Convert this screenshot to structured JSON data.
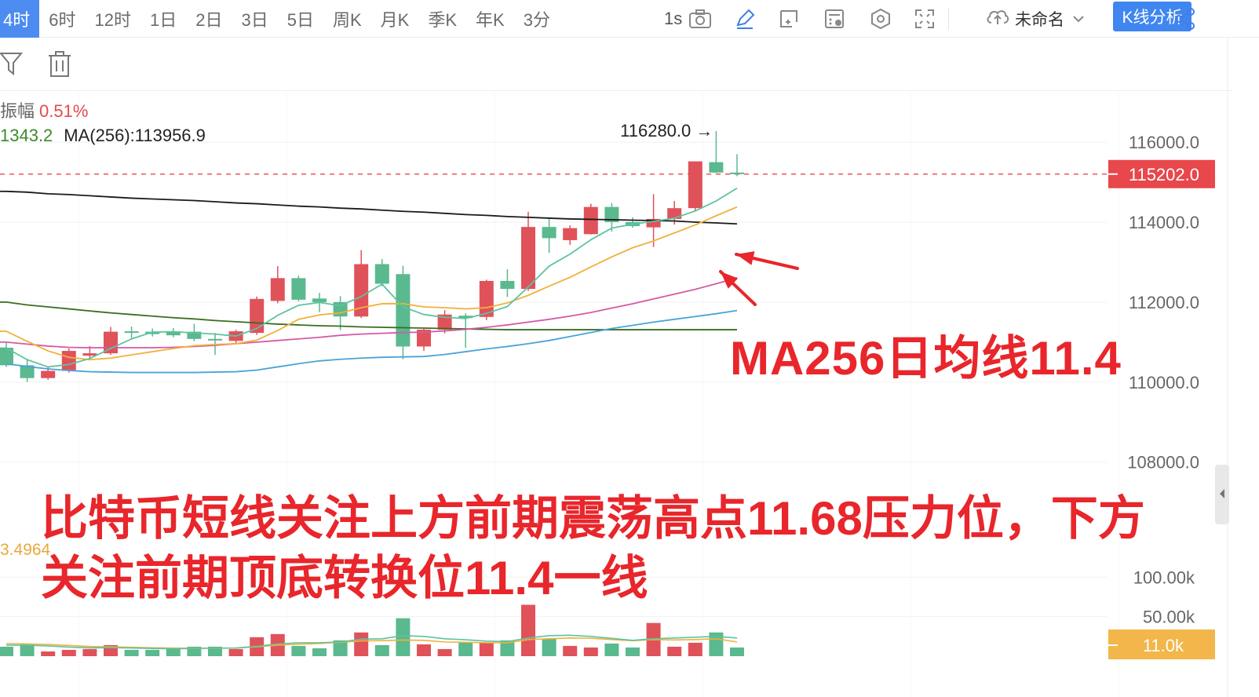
{
  "toolbar": {
    "timeframes": [
      "4时",
      "6时",
      "12时",
      "1日",
      "2日",
      "3日",
      "5日",
      "周K",
      "月K",
      "季K",
      "年K",
      "3分"
    ],
    "active_timeframe": "4时",
    "interval_label": "1s",
    "layout_name": "未命名",
    "kline_button": "K线分析",
    "icons": [
      "camera-icon",
      "pencil-icon",
      "add-frame-icon",
      "calculator-icon",
      "settings-hexagon-icon",
      "fullscreen-icon",
      "cloud-upload-icon",
      "chevron-down-icon",
      "share-icon"
    ]
  },
  "subtoolbar": {
    "icons": [
      "filter-icon",
      "trash-icon"
    ]
  },
  "legend": {
    "amplitude_label": "振幅",
    "amplitude_value": "0.51%",
    "ma_partial_value": "1343.2",
    "ma256_label": "MA(256):113956.9",
    "volume_ma_partial": "3.4964"
  },
  "colors": {
    "up": "#e0525a",
    "down": "#5ab98e",
    "ma_black": "#1a1a1a",
    "ma_teal": "#5ec3a0",
    "ma_orange": "#f0b13b",
    "ma_magenta": "#d55aa5",
    "ma_blue": "#4aa3d8",
    "ma_darkgreen": "#3a6e1f",
    "price_tag": "#e8474b",
    "volume_tag": "#f2b64a",
    "annotation": "#e8262b"
  },
  "chart_data": {
    "type": "candlestick",
    "price_axis": {
      "ticks": [
        "116000.0",
        "114000.0",
        "112000.0",
        "110000.0",
        "108000.0"
      ],
      "range": [
        106600,
        117200
      ]
    },
    "volume_axis": {
      "ticks": [
        "100.00k",
        "50.00k"
      ],
      "range": [
        0,
        135000
      ]
    },
    "current_price_label": "115202.0",
    "current_volume_label": "11.0k",
    "high_marker_label": "116280.0 →",
    "candles": [
      {
        "o": 110860,
        "h": 110980,
        "l": 110380,
        "c": 110420,
        "v": 12000
      },
      {
        "o": 110420,
        "h": 110580,
        "l": 110000,
        "c": 110100,
        "v": 15000
      },
      {
        "o": 110100,
        "h": 110380,
        "l": 110060,
        "c": 110280,
        "v": 6000
      },
      {
        "o": 110280,
        "h": 110840,
        "l": 110240,
        "c": 110780,
        "v": 8000
      },
      {
        "o": 110660,
        "h": 110900,
        "l": 110580,
        "c": 110720,
        "v": 9000
      },
      {
        "o": 110720,
        "h": 111380,
        "l": 110680,
        "c": 111260,
        "v": 14000
      },
      {
        "o": 111270,
        "h": 111390,
        "l": 111100,
        "c": 111240,
        "v": 8000
      },
      {
        "o": 111260,
        "h": 111340,
        "l": 111140,
        "c": 111200,
        "v": 8000
      },
      {
        "o": 111270,
        "h": 111350,
        "l": 111120,
        "c": 111170,
        "v": 9000
      },
      {
        "o": 111260,
        "h": 111460,
        "l": 111020,
        "c": 111080,
        "v": 12000
      },
      {
        "o": 111080,
        "h": 111230,
        "l": 110680,
        "c": 111040,
        "v": 12000
      },
      {
        "o": 111030,
        "h": 111310,
        "l": 110960,
        "c": 111270,
        "v": 9000
      },
      {
        "o": 111230,
        "h": 112140,
        "l": 111180,
        "c": 112080,
        "v": 24000
      },
      {
        "o": 112030,
        "h": 112900,
        "l": 111970,
        "c": 112600,
        "v": 28000
      },
      {
        "o": 112600,
        "h": 112660,
        "l": 112020,
        "c": 112060,
        "v": 13000
      },
      {
        "o": 112090,
        "h": 112230,
        "l": 111750,
        "c": 112000,
        "v": 10000
      },
      {
        "o": 112000,
        "h": 112150,
        "l": 111300,
        "c": 111640,
        "v": 20000
      },
      {
        "o": 111640,
        "h": 113300,
        "l": 111600,
        "c": 112950,
        "v": 30000
      },
      {
        "o": 112950,
        "h": 113080,
        "l": 112400,
        "c": 112460,
        "v": 14000
      },
      {
        "o": 112700,
        "h": 112910,
        "l": 110570,
        "c": 110890,
        "v": 48000
      },
      {
        "o": 110890,
        "h": 111330,
        "l": 110780,
        "c": 111310,
        "v": 15000
      },
      {
        "o": 111310,
        "h": 111800,
        "l": 111220,
        "c": 111690,
        "v": 9000
      },
      {
        "o": 111660,
        "h": 111720,
        "l": 110860,
        "c": 111600,
        "v": 17000
      },
      {
        "o": 111630,
        "h": 112560,
        "l": 111550,
        "c": 112530,
        "v": 17000
      },
      {
        "o": 112530,
        "h": 112820,
        "l": 112130,
        "c": 112330,
        "v": 20000
      },
      {
        "o": 112330,
        "h": 114260,
        "l": 112280,
        "c": 113880,
        "v": 65000
      },
      {
        "o": 113880,
        "h": 114080,
        "l": 113230,
        "c": 113600,
        "v": 22000
      },
      {
        "o": 113550,
        "h": 113920,
        "l": 113430,
        "c": 113850,
        "v": 13000
      },
      {
        "o": 113700,
        "h": 114460,
        "l": 113690,
        "c": 114380,
        "v": 11000
      },
      {
        "o": 114380,
        "h": 114480,
        "l": 113760,
        "c": 114000,
        "v": 16000
      },
      {
        "o": 114000,
        "h": 114120,
        "l": 113860,
        "c": 113900,
        "v": 11000
      },
      {
        "o": 113870,
        "h": 114700,
        "l": 113380,
        "c": 114080,
        "v": 42000
      },
      {
        "o": 114080,
        "h": 114530,
        "l": 113940,
        "c": 114350,
        "v": 12000
      },
      {
        "o": 114350,
        "h": 115520,
        "l": 114280,
        "c": 115520,
        "v": 17000
      },
      {
        "o": 115500,
        "h": 116280,
        "l": 115230,
        "c": 115240,
        "v": 30000
      },
      {
        "o": 115240,
        "h": 115700,
        "l": 115150,
        "c": 115202,
        "v": 11000
      }
    ],
    "ma_lines": [
      {
        "name": "ma256",
        "color": "#1a1a1a",
        "values": [
          114770,
          114750,
          114710,
          114690,
          114660,
          114630,
          114600,
          114580,
          114560,
          114540,
          114510,
          114480,
          114460,
          114430,
          114400,
          114380,
          114350,
          114330,
          114300,
          114270,
          114250,
          114220,
          114190,
          114170,
          114140,
          114120,
          114100,
          114080,
          114070,
          114060,
          114050,
          114040,
          114030,
          114000,
          113980,
          113956.9
        ]
      },
      {
        "name": "ma_darkgreen",
        "color": "#3a6e1f",
        "values": [
          112000,
          111930,
          111880,
          111830,
          111780,
          111730,
          111690,
          111650,
          111610,
          111580,
          111540,
          111510,
          111480,
          111450,
          111430,
          111410,
          111400,
          111380,
          111370,
          111360,
          111350,
          111340,
          111330,
          111320,
          111310,
          111310,
          111310,
          111310,
          111310,
          111310,
          111310,
          111310,
          111310,
          111310,
          111310,
          111310
        ]
      },
      {
        "name": "ma_blue",
        "color": "#4aa3d8",
        "values": [
          110460,
          110390,
          110330,
          110290,
          110260,
          110250,
          110240,
          110240,
          110240,
          110240,
          110250,
          110260,
          110300,
          110380,
          110460,
          110530,
          110570,
          110600,
          110620,
          110630,
          110640,
          110690,
          110760,
          110830,
          110890,
          110960,
          111040,
          111140,
          111240,
          111340,
          111420,
          111500,
          111570,
          111640,
          111710,
          111790
        ]
      },
      {
        "name": "ma_magenta",
        "color": "#d55aa5",
        "values": [
          111000,
          110950,
          110900,
          110870,
          110860,
          110860,
          110860,
          110860,
          110870,
          110890,
          110920,
          110960,
          111000,
          111040,
          111080,
          111120,
          111170,
          111200,
          111220,
          111240,
          111250,
          111280,
          111320,
          111370,
          111430,
          111500,
          111570,
          111650,
          111740,
          111850,
          111960,
          112080,
          112200,
          112320,
          112460,
          112610
        ]
      },
      {
        "name": "ma_orange",
        "color": "#f0b13b",
        "values": [
          111270,
          111020,
          110780,
          110620,
          110560,
          110600,
          110680,
          110760,
          110840,
          110910,
          110940,
          110960,
          111050,
          111290,
          111570,
          111680,
          111730,
          111860,
          111960,
          111960,
          111880,
          111860,
          111830,
          111860,
          111980,
          112170,
          112400,
          112620,
          112880,
          113130,
          113360,
          113530,
          113730,
          113930,
          114160,
          114380
        ]
      },
      {
        "name": "ma_teal",
        "color": "#5ec3a0",
        "values": [
          110850,
          110560,
          110380,
          110440,
          110590,
          110840,
          111080,
          111250,
          111260,
          111230,
          111200,
          111150,
          111340,
          111670,
          111920,
          111990,
          111910,
          112140,
          112450,
          111880,
          111690,
          111620,
          111590,
          111720,
          111890,
          112380,
          112900,
          113200,
          113560,
          113850,
          113950,
          114020,
          114100,
          114280,
          114530,
          114850
        ]
      }
    ],
    "volume_ma_lines": [
      {
        "name": "vol_ma_orange",
        "color": "#f0b13b",
        "values": [
          16000,
          15500,
          14800,
          13600,
          12200,
          11800,
          11200,
          10600,
          10300,
          10000,
          10100,
          10200,
          11800,
          14000,
          15200,
          16000,
          17500,
          19300,
          19700,
          20400,
          20000,
          18000,
          17600,
          17000,
          16800,
          21000,
          22000,
          23000,
          22700,
          21000,
          19500,
          21000,
          20500,
          21000,
          22000,
          18000
        ]
      },
      {
        "name": "vol_ma_teal",
        "color": "#5ec3a0",
        "values": [
          14000,
          13800,
          13000,
          11500,
          10500,
          10700,
          10400,
          9700,
          9400,
          9800,
          10300,
          10400,
          12500,
          15500,
          17000,
          17000,
          18000,
          21500,
          22000,
          26000,
          25000,
          22000,
          20800,
          19000,
          18500,
          23000,
          26000,
          26500,
          25000,
          22500,
          20000,
          22000,
          23000,
          24000,
          25000,
          23000
        ]
      }
    ]
  },
  "annotations": {
    "ma_note": "MA256日均线11.4",
    "analysis_line1": "比特币短线关注上方前期震荡高点11.68压力位，下方",
    "analysis_line2": "关注前期顶底转换位11.4一线"
  }
}
